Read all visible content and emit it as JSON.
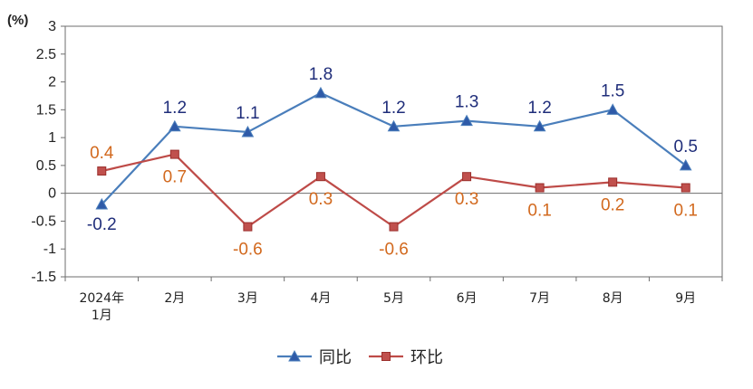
{
  "chart_data": {
    "type": "line",
    "unit_label": "(%)",
    "categories": [
      "2024年\n1月",
      "2月",
      "3月",
      "4月",
      "5月",
      "6月",
      "7月",
      "8月",
      "9月"
    ],
    "ylim": [
      -1.5,
      3
    ],
    "yticks": [
      3,
      2.5,
      2,
      1.5,
      1,
      0.5,
      0,
      -0.5,
      -1,
      -1.5
    ],
    "legend_position": "bottom",
    "series": [
      {
        "name": "同比",
        "color": "#4a7ebb",
        "marker": "triangle",
        "label_color": "#1f2d7a",
        "values": [
          -0.2,
          1.2,
          1.1,
          1.8,
          1.2,
          1.3,
          1.2,
          1.5,
          0.5
        ],
        "labels": [
          "-0.2",
          "1.2",
          "1.1",
          "1.8",
          "1.2",
          "1.3",
          "1.2",
          "1.5",
          "0.5"
        ]
      },
      {
        "name": "环比",
        "color": "#be4b48",
        "marker": "square",
        "label_color": "#d2691e",
        "values": [
          0.4,
          0.7,
          -0.6,
          0.3,
          -0.6,
          0.3,
          0.1,
          0.2,
          0.1
        ],
        "labels": [
          "0.4",
          "0.7",
          "-0.6",
          "0.3",
          "-0.6",
          "0.3",
          "0.1",
          "0.2",
          "0.1"
        ]
      }
    ]
  }
}
